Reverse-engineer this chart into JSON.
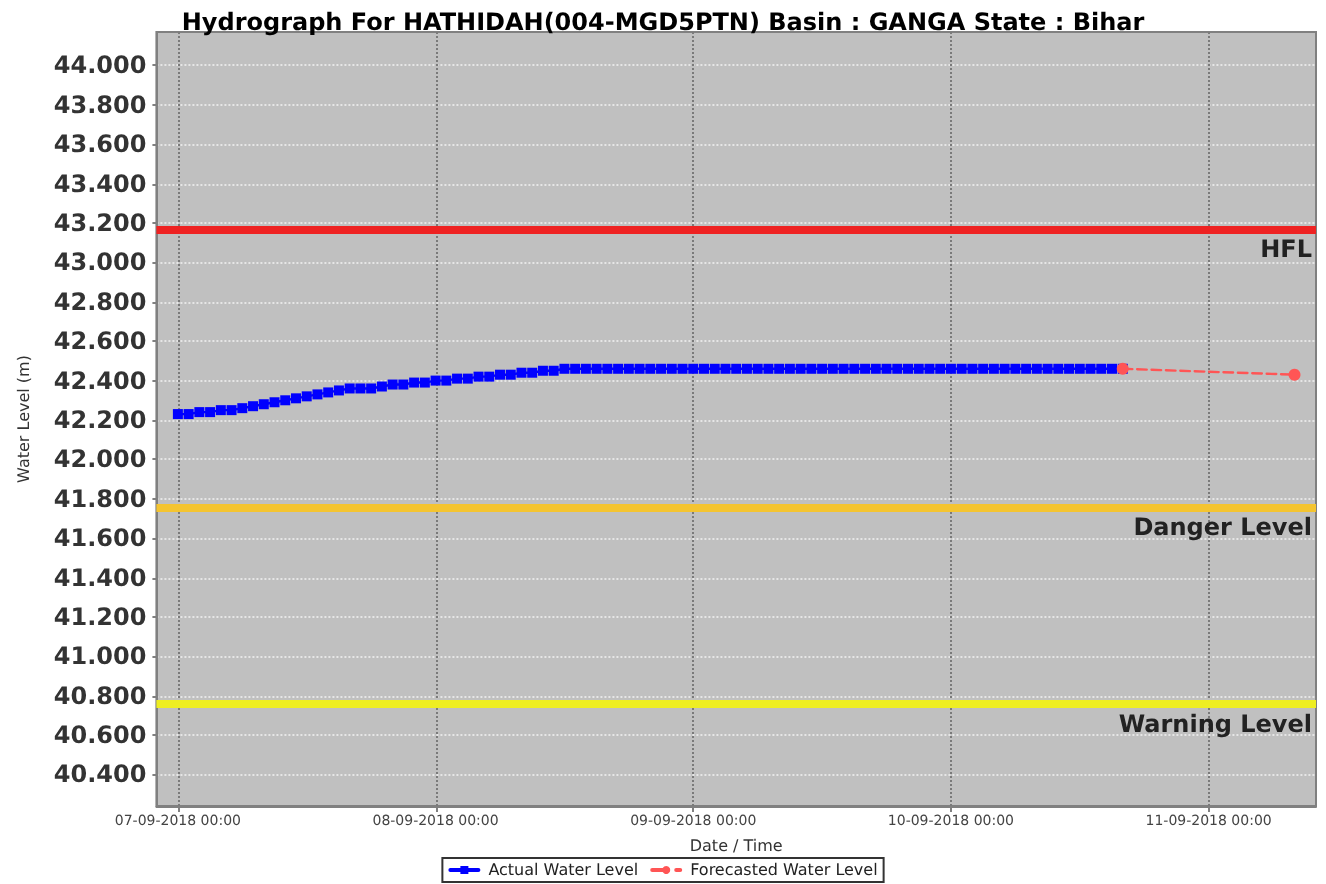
{
  "chart_data": {
    "type": "line",
    "title": "Hydrograph For HATHIDAH(004-MGD5PTN) Basin : GANGA State : Bihar",
    "xlabel": "Date / Time",
    "ylabel": "Water Level (m)",
    "xlim": [
      "2018-09-06T22:00",
      "2018-09-11T10:00"
    ],
    "xticks": [
      {
        "value": "2018-09-07T00:00",
        "label": "07-09-2018 00:00"
      },
      {
        "value": "2018-09-08T00:00",
        "label": "08-09-2018 00:00"
      },
      {
        "value": "2018-09-09T00:00",
        "label": "09-09-2018 00:00"
      },
      {
        "value": "2018-09-10T00:00",
        "label": "10-09-2018 00:00"
      },
      {
        "value": "2018-09-11T00:00",
        "label": "11-09-2018 00:00"
      }
    ],
    "ylim": [
      40.24,
      44.17
    ],
    "yticks": [
      {
        "value": 40.4,
        "label": "40.400"
      },
      {
        "value": 40.6,
        "label": "40.600"
      },
      {
        "value": 40.8,
        "label": "40.800"
      },
      {
        "value": 41.0,
        "label": "41.000"
      },
      {
        "value": 41.2,
        "label": "41.200"
      },
      {
        "value": 41.4,
        "label": "41.400"
      },
      {
        "value": 41.6,
        "label": "41.600"
      },
      {
        "value": 41.8,
        "label": "41.800"
      },
      {
        "value": 42.0,
        "label": "42.000"
      },
      {
        "value": 42.2,
        "label": "42.200"
      },
      {
        "value": 42.4,
        "label": "42.400"
      },
      {
        "value": 42.6,
        "label": "42.600"
      },
      {
        "value": 42.8,
        "label": "42.800"
      },
      {
        "value": 43.0,
        "label": "43.000"
      },
      {
        "value": 43.2,
        "label": "43.200"
      },
      {
        "value": 43.4,
        "label": "43.400"
      },
      {
        "value": 43.6,
        "label": "43.600"
      },
      {
        "value": 43.8,
        "label": "43.800"
      },
      {
        "value": 44.0,
        "label": "44.000"
      }
    ],
    "grid": true,
    "legend": "bottom",
    "series": [
      {
        "name": "Actual Water Level",
        "color": "#0000ff",
        "marker": "square",
        "line_style": "solid",
        "x": [
          "2018-09-07T00:00",
          "2018-09-07T01:00",
          "2018-09-07T02:00",
          "2018-09-07T03:00",
          "2018-09-07T04:00",
          "2018-09-07T05:00",
          "2018-09-07T06:00",
          "2018-09-07T07:00",
          "2018-09-07T08:00",
          "2018-09-07T09:00",
          "2018-09-07T10:00",
          "2018-09-07T11:00",
          "2018-09-07T12:00",
          "2018-09-07T13:00",
          "2018-09-07T14:00",
          "2018-09-07T15:00",
          "2018-09-07T16:00",
          "2018-09-07T17:00",
          "2018-09-07T18:00",
          "2018-09-07T19:00",
          "2018-09-07T20:00",
          "2018-09-07T21:00",
          "2018-09-07T22:00",
          "2018-09-07T23:00",
          "2018-09-08T00:00",
          "2018-09-08T01:00",
          "2018-09-08T02:00",
          "2018-09-08T03:00",
          "2018-09-08T04:00",
          "2018-09-08T05:00",
          "2018-09-08T06:00",
          "2018-09-08T07:00",
          "2018-09-08T08:00",
          "2018-09-08T09:00",
          "2018-09-08T10:00",
          "2018-09-08T11:00",
          "2018-09-08T12:00",
          "2018-09-08T13:00",
          "2018-09-08T14:00",
          "2018-09-08T15:00",
          "2018-09-08T16:00",
          "2018-09-08T17:00",
          "2018-09-08T18:00",
          "2018-09-08T19:00",
          "2018-09-08T20:00",
          "2018-09-08T21:00",
          "2018-09-08T22:00",
          "2018-09-08T23:00",
          "2018-09-09T00:00",
          "2018-09-09T01:00",
          "2018-09-09T02:00",
          "2018-09-09T03:00",
          "2018-09-09T04:00",
          "2018-09-09T05:00",
          "2018-09-09T06:00",
          "2018-09-09T07:00",
          "2018-09-09T08:00",
          "2018-09-09T09:00",
          "2018-09-09T10:00",
          "2018-09-09T11:00",
          "2018-09-09T12:00",
          "2018-09-09T13:00",
          "2018-09-09T14:00",
          "2018-09-09T15:00",
          "2018-09-09T16:00",
          "2018-09-09T17:00",
          "2018-09-09T18:00",
          "2018-09-09T19:00",
          "2018-09-09T20:00",
          "2018-09-09T21:00",
          "2018-09-09T22:00",
          "2018-09-09T23:00",
          "2018-09-10T00:00",
          "2018-09-10T01:00",
          "2018-09-10T02:00",
          "2018-09-10T03:00",
          "2018-09-10T04:00",
          "2018-09-10T05:00",
          "2018-09-10T06:00",
          "2018-09-10T07:00",
          "2018-09-10T08:00",
          "2018-09-10T09:00",
          "2018-09-10T10:00",
          "2018-09-10T11:00",
          "2018-09-10T12:00",
          "2018-09-10T13:00",
          "2018-09-10T14:00",
          "2018-09-10T15:00",
          "2018-09-10T16:00"
        ],
        "values": [
          42.23,
          42.23,
          42.24,
          42.24,
          42.25,
          42.25,
          42.26,
          42.27,
          42.28,
          42.29,
          42.3,
          42.31,
          42.32,
          42.33,
          42.34,
          42.35,
          42.36,
          42.36,
          42.36,
          42.37,
          42.38,
          42.38,
          42.39,
          42.39,
          42.4,
          42.4,
          42.41,
          42.41,
          42.42,
          42.42,
          42.43,
          42.43,
          42.44,
          42.44,
          42.45,
          42.45,
          42.46,
          42.46,
          42.46,
          42.46,
          42.46,
          42.46,
          42.46,
          42.46,
          42.46,
          42.46,
          42.46,
          42.46,
          42.46,
          42.46,
          42.46,
          42.46,
          42.46,
          42.46,
          42.46,
          42.46,
          42.46,
          42.46,
          42.46,
          42.46,
          42.46,
          42.46,
          42.46,
          42.46,
          42.46,
          42.46,
          42.46,
          42.46,
          42.46,
          42.46,
          42.46,
          42.46,
          42.46,
          42.46,
          42.46,
          42.46,
          42.46,
          42.46,
          42.46,
          42.46,
          42.46,
          42.46,
          42.46,
          42.46,
          42.46,
          42.46,
          42.46,
          42.46,
          42.46
        ]
      },
      {
        "name": "Forecasted Water Level",
        "color": "#ff5555",
        "marker": "circle",
        "line_style": "dashed",
        "x": [
          "2018-09-10T16:00",
          "2018-09-11T08:00"
        ],
        "values": [
          42.46,
          42.43
        ]
      }
    ],
    "ref_lines": [
      {
        "axis": "y",
        "value": 43.17,
        "label": "HFL",
        "color": "#ee2222"
      },
      {
        "axis": "y",
        "value": 41.76,
        "label": "Danger Level",
        "color": "#f4c430"
      },
      {
        "axis": "y",
        "value": 40.76,
        "label": "Warning Level",
        "color": "#eeee22"
      }
    ]
  }
}
